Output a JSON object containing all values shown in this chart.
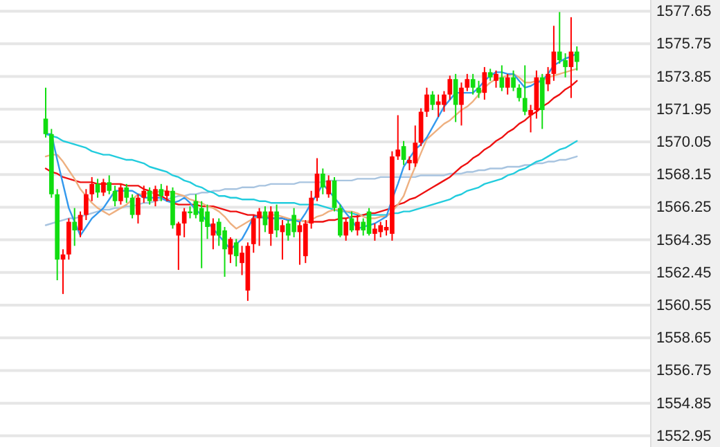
{
  "chart_data": {
    "type": "candlestick",
    "tick_labels": "y",
    "grid": "y",
    "categories": [
      null,
      null,
      null,
      null,
      null,
      null,
      null,
      null,
      null,
      null,
      null,
      null,
      null,
      null,
      null,
      null,
      null,
      null,
      null,
      null,
      null,
      null,
      null,
      null,
      null,
      null,
      null,
      null,
      null,
      null,
      null,
      null,
      null,
      null,
      null,
      null,
      null,
      null,
      null,
      null,
      null,
      null,
      null,
      null,
      null,
      null,
      null,
      null,
      null,
      null,
      null,
      null,
      null,
      null,
      null,
      null,
      null,
      null,
      null,
      null,
      null,
      null,
      null,
      null,
      null,
      null,
      null,
      null,
      null,
      null,
      null,
      null,
      null,
      null,
      null,
      null,
      null,
      null,
      null,
      null,
      null,
      null,
      null,
      null,
      null,
      null,
      null,
      null,
      null,
      null,
      null,
      null,
      null
    ],
    "colors": [
      "#11dd11",
      "#11dd11",
      "#11dd11",
      "#ff0000",
      "#ff0000",
      "#11dd11",
      "#ff0000",
      "#ff0000",
      "#ff0000",
      "#11dd11",
      "#ff0000",
      "#11dd11",
      "#11dd11",
      "#ff0000",
      "#11dd11",
      "#11dd11",
      "#ff0000",
      "#ff0000",
      "#11dd11",
      "#ff0000",
      "#11dd11",
      "#ff0000",
      "#11dd11",
      "#ff0000",
      "#ff0000",
      "#11dd11",
      "#11dd11",
      "#11dd11",
      "#11dd11",
      "#ff0000",
      "#11dd11",
      "#11dd11",
      "#ff0000",
      "#11dd11",
      "#ff0000",
      "#ff0000",
      "#ff0000",
      "#ff0000",
      "#11dd11",
      "#ff0000",
      "#11dd11",
      "#ff0000",
      "#11dd11",
      "#11dd11",
      "#ff0000",
      "#ff0000",
      "#ff0000",
      "#ff0000",
      "#11dd11",
      "#ff0000",
      "#11dd11",
      "#11dd11",
      "#ff0000",
      "#11dd11",
      "#ff0000",
      "#11dd11",
      "#11dd11",
      "#ff0000",
      "#ff0000",
      "#ff0000",
      "#ff0000",
      "#ff0000",
      "#11dd11",
      "#ff0000",
      "#ff0000",
      "#ff0000",
      "#ff0000",
      "#11dd11",
      "#ff0000",
      "#ff0000",
      "#ff0000",
      "#11dd11",
      "#ff0000",
      "#ff0000",
      "#11dd11",
      "#11dd11",
      "#ff0000",
      "#11dd11",
      "#ff0000",
      "#11dd11",
      "#ff0000",
      "#11dd11",
      "#11dd11",
      "#11dd11",
      "#ff0000",
      "#ff0000",
      "#11dd11",
      "#ff0000",
      "#ff0000",
      "#11dd11",
      "#11dd11",
      "#ff0000",
      "#11dd11"
    ],
    "ylim": [
      1552.3,
      1578.3
    ],
    "yticks": [
      1577.65,
      1575.75,
      1573.85,
      1571.95,
      1570.05,
      1568.15,
      1566.25,
      1564.35,
      1562.45,
      1560.55,
      1558.65,
      1556.75,
      1554.85,
      1552.95
    ],
    "ohlc": [
      [
        1571.4,
        1573.2,
        1570.3,
        1570.5
      ],
      [
        1570.5,
        1570.8,
        1566.8,
        1567.0
      ],
      [
        1567.0,
        1567.3,
        1562.0,
        1563.2
      ],
      [
        1563.2,
        1563.8,
        1561.2,
        1563.5
      ],
      [
        1563.5,
        1565.6,
        1563.2,
        1565.4
      ],
      [
        1565.4,
        1566.2,
        1564.0,
        1564.9
      ],
      [
        1564.9,
        1566.0,
        1564.5,
        1565.8
      ],
      [
        1565.8,
        1567.3,
        1565.5,
        1567.0
      ],
      [
        1567.0,
        1568.0,
        1566.6,
        1567.6
      ],
      [
        1567.6,
        1567.9,
        1566.8,
        1567.1
      ],
      [
        1567.1,
        1567.9,
        1566.9,
        1567.7
      ],
      [
        1567.7,
        1568.1,
        1567.0,
        1567.2
      ],
      [
        1567.2,
        1567.5,
        1566.3,
        1566.6
      ],
      [
        1566.6,
        1567.6,
        1566.4,
        1567.4
      ],
      [
        1567.4,
        1567.6,
        1566.5,
        1566.8
      ],
      [
        1566.8,
        1567.0,
        1565.6,
        1565.8
      ],
      [
        1565.8,
        1567.0,
        1565.3,
        1566.8
      ],
      [
        1566.8,
        1567.5,
        1566.5,
        1567.2
      ],
      [
        1567.2,
        1567.4,
        1566.4,
        1566.6
      ],
      [
        1566.6,
        1567.5,
        1566.3,
        1567.3
      ],
      [
        1567.3,
        1567.6,
        1566.6,
        1566.9
      ],
      [
        1566.9,
        1567.5,
        1566.6,
        1567.2
      ],
      [
        1567.2,
        1567.4,
        1565.0,
        1565.2
      ],
      [
        1564.6,
        1565.4,
        1562.6,
        1565.3
      ],
      [
        1565.3,
        1566.2,
        1564.5,
        1566.0
      ],
      [
        1566.0,
        1566.3,
        1565.6,
        1565.9
      ],
      [
        1566.6,
        1567.0,
        1565.6,
        1565.8
      ],
      [
        1566.2,
        1566.6,
        1562.7,
        1565.4
      ],
      [
        1566.0,
        1566.4,
        1564.4,
        1565.1
      ],
      [
        1564.6,
        1565.6,
        1563.8,
        1565.3
      ],
      [
        1565.4,
        1565.6,
        1564.0,
        1564.6
      ],
      [
        1564.9,
        1565.1,
        1562.2,
        1563.8
      ],
      [
        1563.5,
        1564.5,
        1563.0,
        1564.4
      ],
      [
        1564.2,
        1564.4,
        1562.8,
        1563.4
      ],
      [
        1563.0,
        1564.0,
        1562.3,
        1563.6
      ],
      [
        1561.4,
        1564.2,
        1560.8,
        1564.0
      ],
      [
        1564.1,
        1565.8,
        1563.6,
        1565.6
      ],
      [
        1565.6,
        1566.2,
        1564.0,
        1566.0
      ],
      [
        1566.0,
        1566.3,
        1564.8,
        1565.2
      ],
      [
        1564.7,
        1566.3,
        1564.0,
        1566.0
      ],
      [
        1566.0,
        1566.4,
        1564.5,
        1564.9
      ],
      [
        1564.8,
        1565.5,
        1563.2,
        1565.2
      ],
      [
        1565.3,
        1565.5,
        1564.3,
        1564.6
      ],
      [
        1565.8,
        1566.2,
        1564.5,
        1564.8
      ],
      [
        1564.8,
        1565.4,
        1562.9,
        1565.2
      ],
      [
        1563.4,
        1565.5,
        1563.0,
        1565.3
      ],
      [
        1565.3,
        1567.2,
        1565.0,
        1566.8
      ],
      [
        1566.8,
        1569.1,
        1566.6,
        1568.2
      ],
      [
        1568.2,
        1568.5,
        1567.0,
        1567.4
      ],
      [
        1567.0,
        1568.1,
        1566.8,
        1567.8
      ],
      [
        1567.8,
        1568.0,
        1566.0,
        1566.2
      ],
      [
        1566.2,
        1566.4,
        1564.5,
        1564.6
      ],
      [
        1564.6,
        1565.6,
        1564.3,
        1565.4
      ],
      [
        1565.6,
        1566.0,
        1564.8,
        1564.9
      ],
      [
        1564.9,
        1565.8,
        1564.6,
        1565.4
      ],
      [
        1565.4,
        1565.6,
        1564.6,
        1564.9
      ],
      [
        1566.0,
        1566.2,
        1564.6,
        1564.7
      ],
      [
        1564.7,
        1565.3,
        1564.3,
        1565.0
      ],
      [
        1564.8,
        1565.4,
        1564.5,
        1565.2
      ],
      [
        1564.9,
        1565.5,
        1564.6,
        1565.1
      ],
      [
        1564.7,
        1569.5,
        1564.3,
        1569.2
      ],
      [
        1569.2,
        1571.6,
        1569.0,
        1569.6
      ],
      [
        1569.8,
        1570.1,
        1568.7,
        1569.0
      ],
      [
        1568.8,
        1569.2,
        1568.4,
        1569.0
      ],
      [
        1568.8,
        1571.0,
        1568.6,
        1570.0
      ],
      [
        1570.0,
        1572.0,
        1569.8,
        1571.8
      ],
      [
        1571.8,
        1573.2,
        1571.5,
        1572.8
      ],
      [
        1572.8,
        1573.0,
        1571.9,
        1572.2
      ],
      [
        1572.2,
        1572.8,
        1571.5,
        1572.4
      ],
      [
        1572.2,
        1573.0,
        1571.8,
        1572.8
      ],
      [
        1572.8,
        1573.9,
        1572.5,
        1573.7
      ],
      [
        1573.7,
        1574.0,
        1571.2,
        1572.2
      ],
      [
        1572.2,
        1573.5,
        1571.0,
        1573.2
      ],
      [
        1573.2,
        1574.0,
        1573.0,
        1573.7
      ],
      [
        1573.7,
        1574.0,
        1572.8,
        1573.2
      ],
      [
        1573.2,
        1573.6,
        1572.6,
        1572.9
      ],
      [
        1572.9,
        1574.4,
        1572.5,
        1574.1
      ],
      [
        1574.1,
        1574.3,
        1573.6,
        1573.8
      ],
      [
        1573.6,
        1574.2,
        1573.2,
        1574.0
      ],
      [
        1573.8,
        1574.5,
        1573.0,
        1573.2
      ],
      [
        1573.2,
        1574.0,
        1572.8,
        1573.8
      ],
      [
        1573.8,
        1574.2,
        1573.0,
        1573.2
      ],
      [
        1573.2,
        1573.4,
        1572.4,
        1572.6
      ],
      [
        1572.6,
        1574.5,
        1571.6,
        1571.8
      ],
      [
        1571.6,
        1572.2,
        1570.6,
        1571.9
      ],
      [
        1571.9,
        1574.2,
        1571.4,
        1573.8
      ],
      [
        1573.8,
        1574.0,
        1570.8,
        1571.9
      ],
      [
        1573.4,
        1574.4,
        1573.0,
        1574.0
      ],
      [
        1574.0,
        1576.8,
        1573.6,
        1575.3
      ],
      [
        1575.3,
        1577.6,
        1574.6,
        1574.8
      ],
      [
        1574.8,
        1575.2,
        1573.8,
        1574.4
      ],
      [
        1574.4,
        1577.3,
        1572.6,
        1575.3
      ],
      [
        1575.3,
        1575.6,
        1574.2,
        1574.7
      ]
    ],
    "series": [
      {
        "type": "line",
        "color": "#a8c4e0",
        "values": [
          1565.2,
          1565.3,
          1565.4,
          1565.5,
          1565.6,
          1565.6,
          1565.7,
          1565.8,
          1565.9,
          1566.0,
          1566.1,
          1566.1,
          1566.2,
          1566.2,
          1566.3,
          1566.3,
          1566.4,
          1566.5,
          1566.5,
          1566.6,
          1566.7,
          1566.7,
          1566.8,
          1566.9,
          1566.9,
          1567.0,
          1567.0,
          1567.1,
          1567.1,
          1567.2,
          1567.2,
          1567.3,
          1567.3,
          1567.3,
          1567.4,
          1567.4,
          1567.4,
          1567.5,
          1567.5,
          1567.6,
          1567.6,
          1567.6,
          1567.6,
          1567.6,
          1567.7,
          1567.7,
          1567.7,
          1567.7,
          1567.7,
          1567.8,
          1567.8,
          1567.8,
          1567.8,
          1567.8,
          1567.9,
          1567.9,
          1567.9,
          1567.9,
          1568.0,
          1568.0,
          1568.0,
          1568.0,
          1568.0,
          1568.0,
          1568.0,
          1568.1,
          1568.1,
          1568.1,
          1568.1,
          1568.1,
          1568.2,
          1568.2,
          1568.2,
          1568.3,
          1568.3,
          1568.4,
          1568.4,
          1568.5,
          1568.5,
          1568.5,
          1568.6,
          1568.6,
          1568.6,
          1568.7,
          1568.7,
          1568.8,
          1568.8,
          1568.9,
          1568.9,
          1569.0,
          1569.0,
          1569.1,
          1569.2
        ]
      },
      {
        "type": "line",
        "color": "#22ccdd",
        "values": [
          1570.5,
          1570.4,
          1570.3,
          1570.1,
          1570.0,
          1569.9,
          1569.8,
          1569.7,
          1569.5,
          1569.4,
          1569.3,
          1569.3,
          1569.2,
          1569.1,
          1569.0,
          1569.0,
          1568.9,
          1568.8,
          1568.6,
          1568.5,
          1568.4,
          1568.3,
          1568.1,
          1568.0,
          1567.8,
          1567.7,
          1567.5,
          1567.4,
          1567.2,
          1567.1,
          1566.9,
          1566.9,
          1566.8,
          1566.8,
          1566.7,
          1566.7,
          1566.7,
          1566.6,
          1566.6,
          1566.5,
          1566.5,
          1566.5,
          1566.5,
          1566.5,
          1566.4,
          1566.4,
          1566.4,
          1566.4,
          1566.3,
          1566.2,
          1566.1,
          1566.0,
          1566.0,
          1565.9,
          1565.8,
          1565.8,
          1565.8,
          1565.8,
          1565.8,
          1565.8,
          1565.9,
          1565.9,
          1566.0,
          1566.0,
          1566.1,
          1566.2,
          1566.3,
          1566.4,
          1566.5,
          1566.6,
          1566.7,
          1566.9,
          1567.0,
          1567.2,
          1567.3,
          1567.4,
          1567.6,
          1567.7,
          1567.8,
          1567.9,
          1568.1,
          1568.2,
          1568.4,
          1568.5,
          1568.7,
          1568.9,
          1569.0,
          1569.2,
          1569.4,
          1569.6,
          1569.7,
          1569.9,
          1570.1
        ]
      },
      {
        "type": "line",
        "color": "#ee1111",
        "values": [
          1568.5,
          1568.3,
          1568.2,
          1568.0,
          1567.9,
          1567.8,
          1567.7,
          1567.7,
          1567.7,
          1567.6,
          1567.6,
          1567.6,
          1567.6,
          1567.6,
          1567.5,
          1567.5,
          1567.5,
          1567.3,
          1567.2,
          1567.0,
          1566.9,
          1566.7,
          1566.5,
          1566.4,
          1566.4,
          1566.4,
          1566.4,
          1566.3,
          1566.3,
          1566.3,
          1566.2,
          1566.1,
          1566.0,
          1566.0,
          1565.9,
          1565.8,
          1565.8,
          1565.7,
          1565.7,
          1565.6,
          1565.6,
          1565.6,
          1565.5,
          1565.5,
          1565.5,
          1565.4,
          1565.4,
          1565.4,
          1565.4,
          1565.5,
          1565.5,
          1565.6,
          1565.6,
          1565.7,
          1565.7,
          1565.8,
          1565.9,
          1565.9,
          1566.0,
          1566.1,
          1566.2,
          1566.4,
          1566.5,
          1566.7,
          1566.8,
          1567.0,
          1567.2,
          1567.4,
          1567.6,
          1567.8,
          1568.0,
          1568.3,
          1568.6,
          1568.8,
          1569.1,
          1569.3,
          1569.6,
          1569.8,
          1570.1,
          1570.3,
          1570.6,
          1570.8,
          1571.1,
          1571.3,
          1571.6,
          1571.8,
          1572.1,
          1572.3,
          1572.6,
          1572.8,
          1573.1,
          1573.3,
          1573.6
        ]
      },
      {
        "type": "line",
        "color": "#eeb080",
        "values": [
          1569.2,
          1569.3,
          1569.3,
          1568.9,
          1568.4,
          1567.9,
          1567.3,
          1566.9,
          1566.5,
          1566.2,
          1566.0,
          1565.8,
          1566.0,
          1566.2,
          1566.4,
          1566.7,
          1567.0,
          1567.0,
          1567.1,
          1567.1,
          1567.2,
          1567.2,
          1567.1,
          1567.0,
          1566.9,
          1566.7,
          1566.6,
          1566.5,
          1566.3,
          1566.2,
          1566.0,
          1565.7,
          1565.3,
          1565.0,
          1565.2,
          1565.4,
          1565.6,
          1565.7,
          1565.7,
          1565.8,
          1565.8,
          1565.7,
          1565.6,
          1565.5,
          1565.5,
          1565.4,
          1565.5,
          1565.7,
          1565.8,
          1566.0,
          1566.1,
          1566.1,
          1566.0,
          1566.0,
          1565.9,
          1565.7,
          1565.6,
          1565.6,
          1565.7,
          1565.7,
          1566.0,
          1566.4,
          1566.9,
          1567.8,
          1568.6,
          1569.4,
          1570.2,
          1570.5,
          1570.8,
          1571.1,
          1571.3,
          1571.6,
          1571.9,
          1572.1,
          1572.4,
          1572.8,
          1573.2,
          1573.5,
          1573.7,
          1573.8,
          1573.9,
          1574.0,
          1573.8,
          1573.5,
          1573.5,
          1573.6,
          1573.6,
          1573.8,
          1573.9,
          1574.0,
          1574.1,
          1574.2,
          1574.3
        ]
      },
      {
        "type": "line",
        "color": "#3399ee",
        "values": [
          1570.5,
          1570.5,
          1569.0,
          1567.6,
          1566.2,
          1565.4,
          1564.6,
          1565.1,
          1565.6,
          1565.9,
          1566.2,
          1566.7,
          1567.2,
          1567.2,
          1567.2,
          1567.2,
          1567.0,
          1566.8,
          1566.8,
          1566.8,
          1566.8,
          1566.6,
          1566.5,
          1566.6,
          1566.8,
          1566.5,
          1566.1,
          1565.8,
          1565.4,
          1565.0,
          1564.6,
          1564.2,
          1563.8,
          1564.1,
          1564.4,
          1565.0,
          1565.7,
          1565.7,
          1565.6,
          1565.6,
          1565.6,
          1565.6,
          1565.5,
          1565.5,
          1565.4,
          1565.9,
          1566.5,
          1567.0,
          1567.6,
          1567.2,
          1566.8,
          1566.4,
          1565.9,
          1565.5,
          1565.0,
          1565.1,
          1565.2,
          1565.3,
          1565.5,
          1565.7,
          1566.7,
          1567.6,
          1568.6,
          1569.1,
          1569.6,
          1569.9,
          1570.3,
          1570.9,
          1571.5,
          1572.1,
          1572.5,
          1572.9,
          1572.9,
          1572.9,
          1572.9,
          1573.2,
          1573.6,
          1573.9,
          1574.1,
          1574.1,
          1574.0,
          1574.0,
          1573.6,
          1573.2,
          1573.3,
          1573.5,
          1573.6,
          1574.0,
          1574.5,
          1574.7,
          1574.9,
          1575.0,
          1575.2
        ]
      }
    ]
  }
}
